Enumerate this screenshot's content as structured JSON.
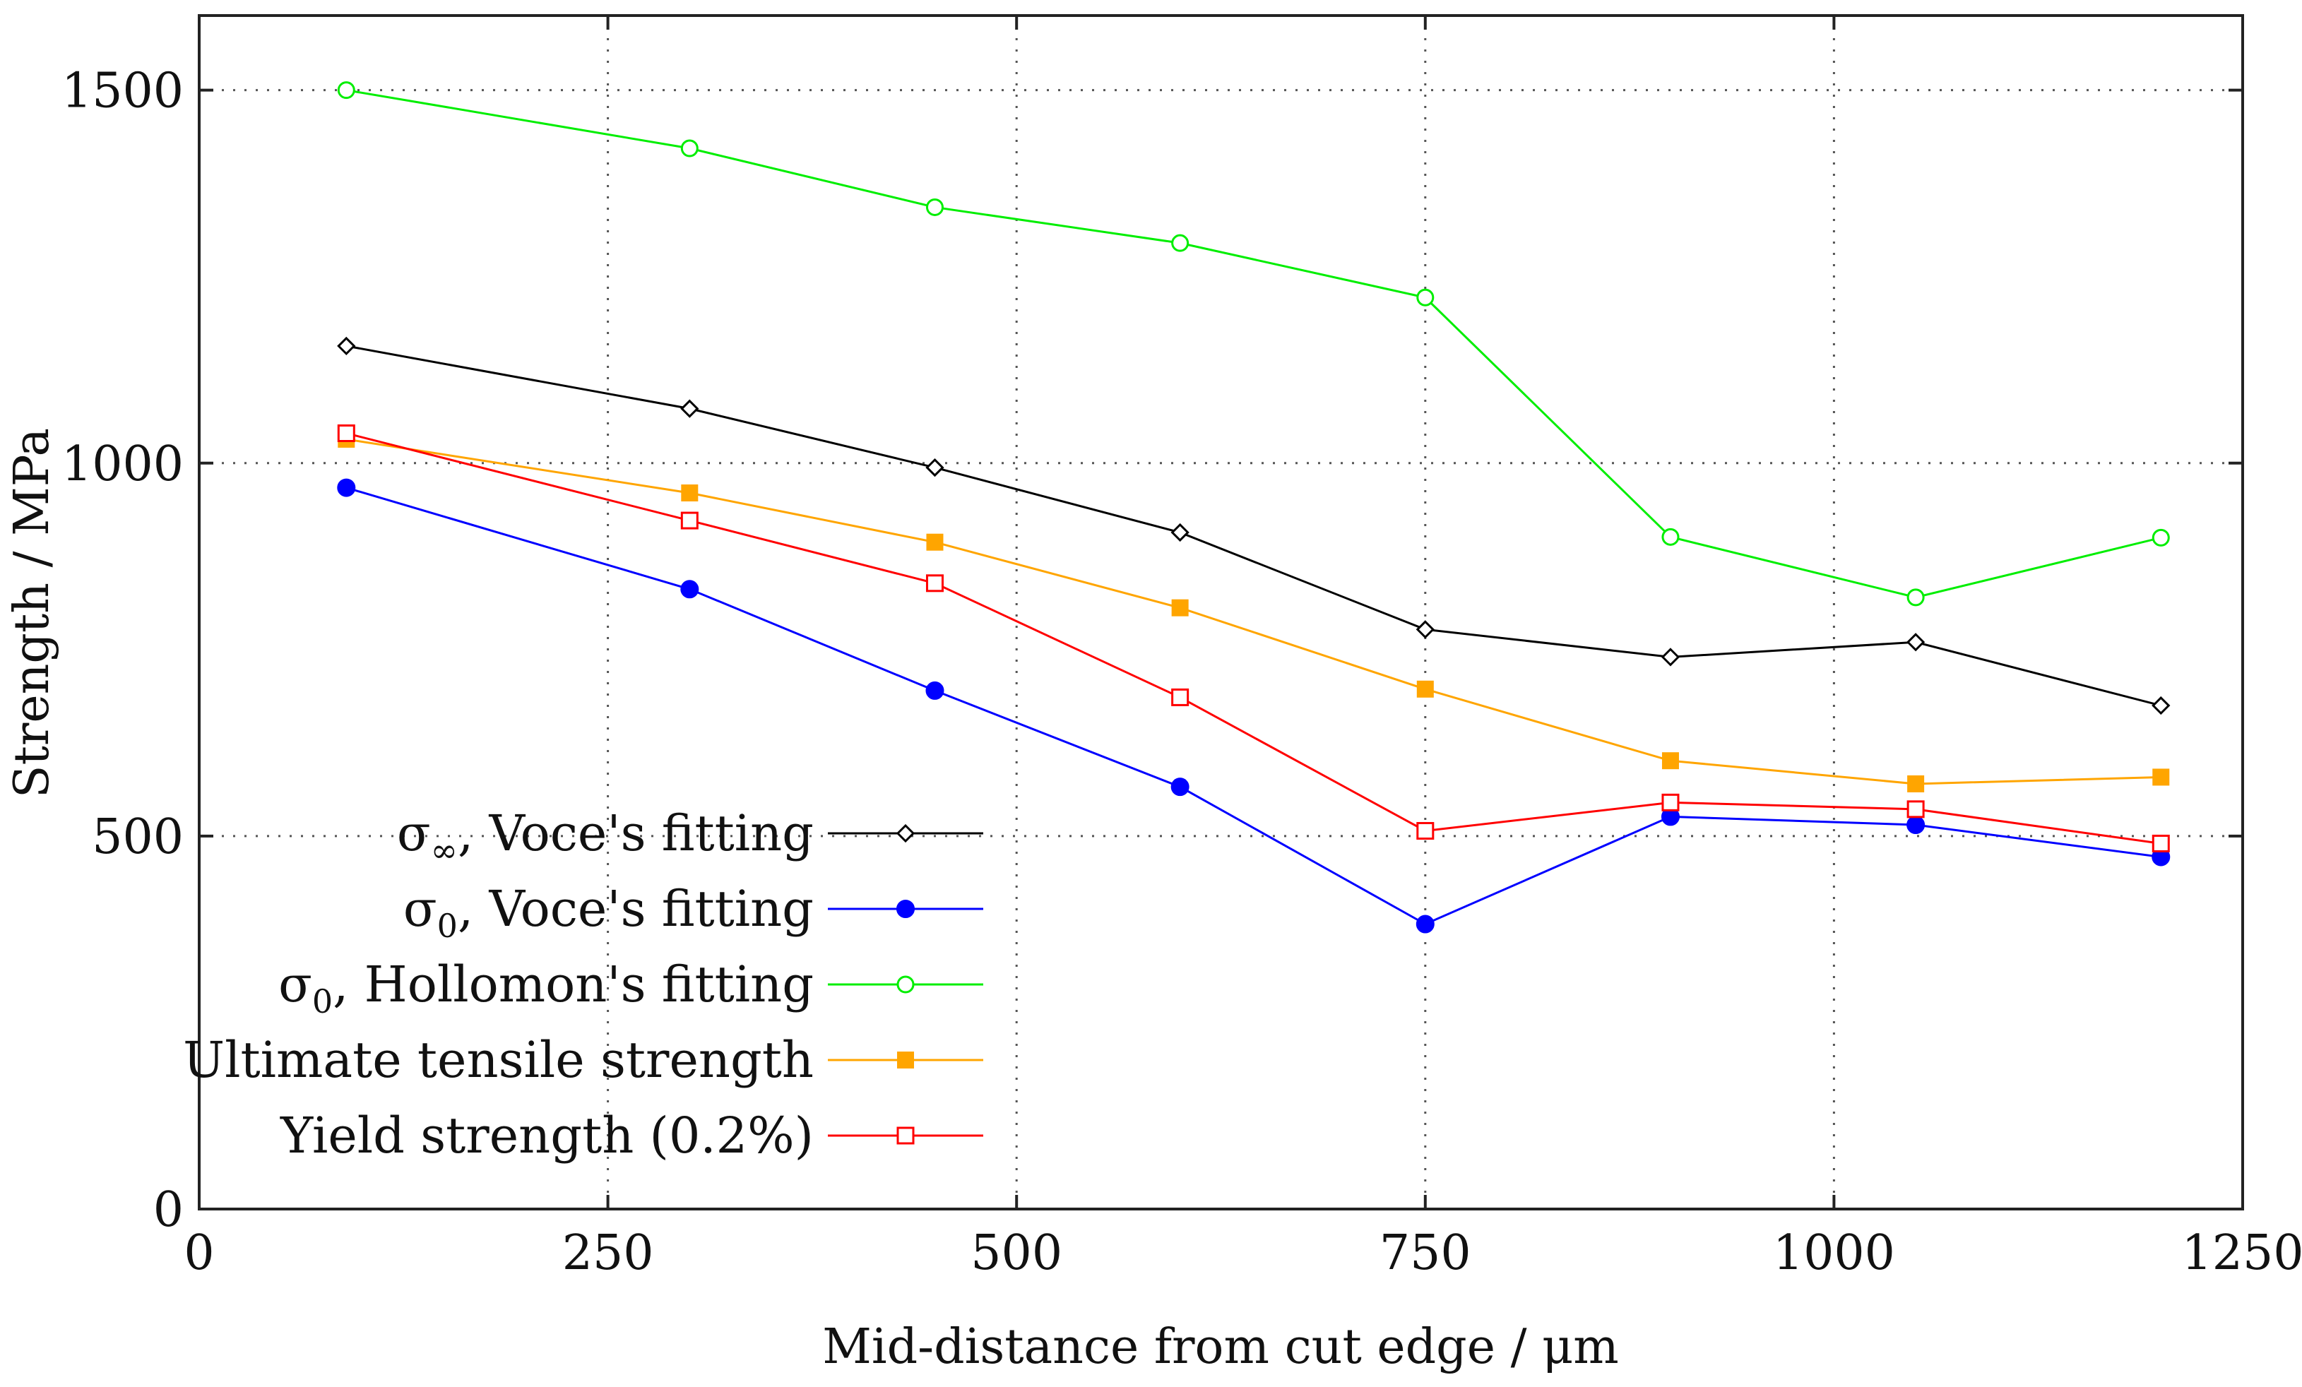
{
  "chart_data": {
    "type": "line",
    "title": "",
    "xlabel": "Mid-distance from cut edge / μm",
    "ylabel": "Strength / MPa",
    "xlim": [
      0,
      1250
    ],
    "ylim": [
      0,
      1600
    ],
    "xticks": [
      0,
      250,
      500,
      750,
      1000,
      1250
    ],
    "yticks": [
      0,
      500,
      1000,
      1500
    ],
    "x": [
      90,
      300,
      450,
      600,
      750,
      900,
      1050,
      1200
    ],
    "legend_position": "bottom-left",
    "series": [
      {
        "name": "σ∞, Voce's fitting",
        "label_main": "σ",
        "label_sub": "∞",
        "label_rest": ", Voce's fitting",
        "color": "#000000",
        "marker": "diamond-open",
        "values": [
          1157,
          1073,
          994,
          907,
          777,
          740,
          760,
          675
        ]
      },
      {
        "name": "σ0, Voce's fitting",
        "label_main": "σ",
        "label_sub": "0",
        "label_rest": ", Voce's fitting",
        "color": "#0000ff",
        "marker": "circle-filled",
        "values": [
          967,
          831,
          695,
          566,
          382,
          526,
          515,
          472
        ]
      },
      {
        "name": "σ0, Hollomon's fitting",
        "label_main": "σ",
        "label_sub": "0",
        "label_rest": ", Hollomon's fitting",
        "color": "#00ee00",
        "marker": "circle-open",
        "values": [
          1500,
          1422,
          1343,
          1295,
          1222,
          901,
          820,
          900
        ]
      },
      {
        "name": "Ultimate tensile strength",
        "label_main": "Ultimate tensile strength",
        "label_sub": "",
        "label_rest": "",
        "color": "#ffa500",
        "marker": "square-filled",
        "values": [
          1032,
          960,
          894,
          806,
          697,
          601,
          570,
          579
        ]
      },
      {
        "name": "Yield strength (0.2%)",
        "label_main": "Yield strength (0.2%)",
        "label_sub": "",
        "label_rest": "",
        "color": "#ff0000",
        "marker": "square-open",
        "values": [
          1040,
          923,
          839,
          686,
          507,
          545,
          536,
          490
        ]
      }
    ]
  }
}
